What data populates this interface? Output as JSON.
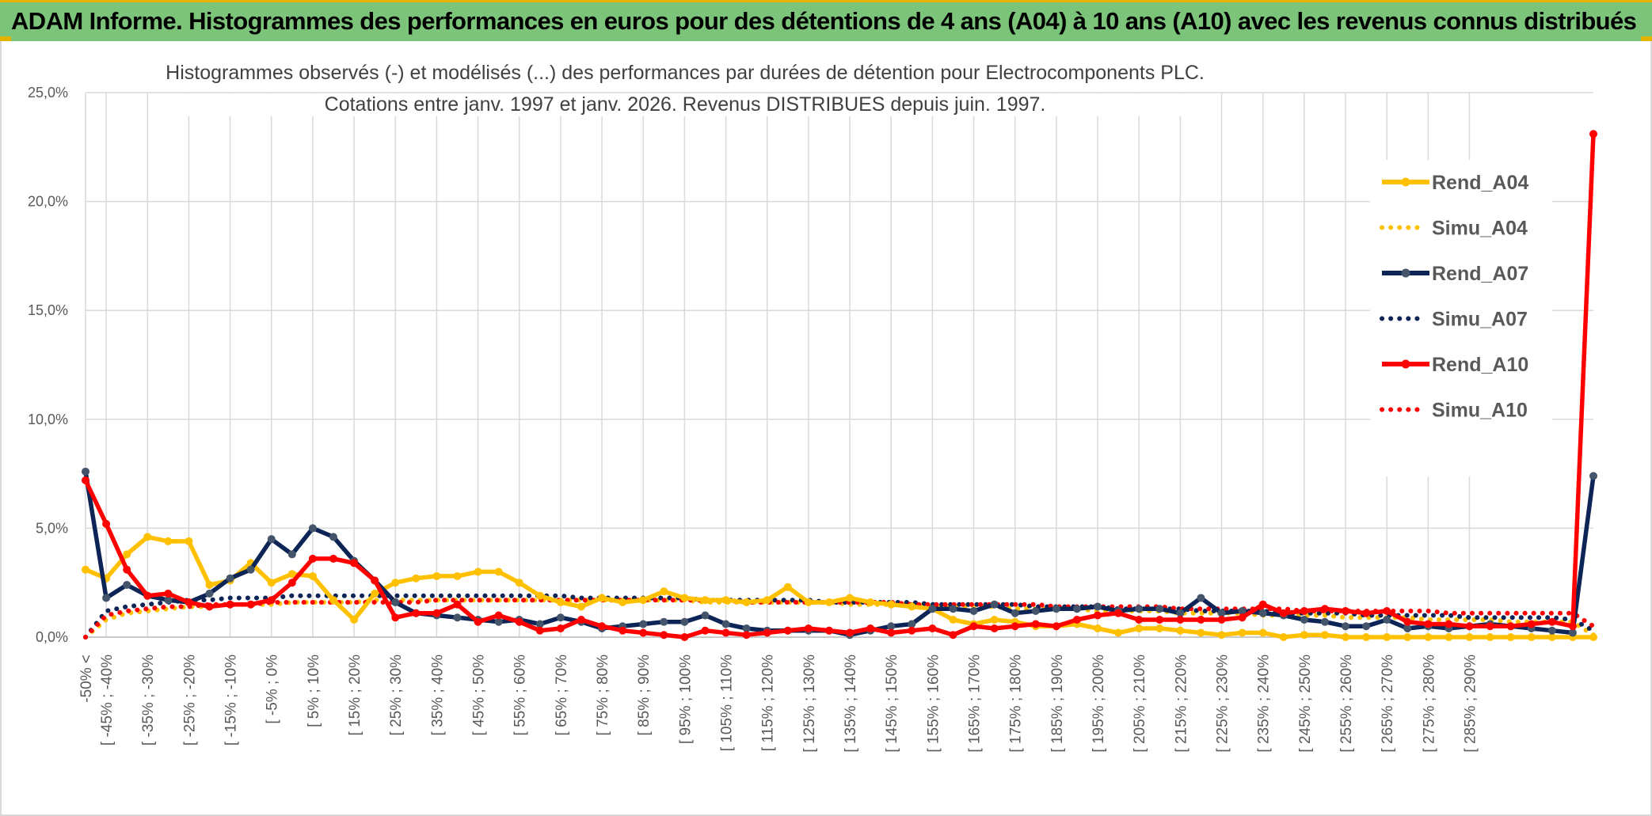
{
  "banner": {
    "title": "ADAM Informe. Histogrammes des performances en euros pour des détentions de 4 ans (A04) à 10 ans (A10) avec les revenus connus distribués"
  },
  "colors": {
    "banner_bg": "#7cc47a",
    "accent_gold": "#e3b300",
    "rend_a04": "#ffc000",
    "rend_a07": "#0d2457",
    "rend_a10": "#ff0000",
    "gridline": "#d9d9d9"
  },
  "chart_data": {
    "type": "line",
    "title_line1": "Histogrammes observés (-) et modélisés (...) des performances par durées de détention pour Electrocomponents PLC.",
    "title_line2": "Cotations entre janv. 1997 et janv. 2026. Revenus DISTRIBUES depuis juin. 1997.",
    "xlabel": "",
    "ylabel": "",
    "ylim": [
      0,
      25
    ],
    "y_ticks": [
      "0,0%",
      "5,0%",
      "10,0%",
      "15,0%",
      "20,0%",
      "25,0%"
    ],
    "grid": true,
    "legend_position": "right",
    "x_tick_labels": [
      "-50% <",
      "[ -45% ; -40%",
      "[ -35% ; -30%",
      "[ -25% ; -20%",
      "[ -15% ; -10%",
      "[ -5% ; 0%",
      "[ 5% ; 10%",
      "[ 15% ; 20%",
      "[ 25% ; 30%",
      "[ 35% ; 40%",
      "[ 45% ; 50%",
      "[ 55% ; 60%",
      "[ 65% ; 70%",
      "[ 75% ; 80%",
      "[ 85% ; 90%",
      "[ 95% ; 100%",
      "[ 105% ; 110%",
      "[ 115% ; 120%",
      "[ 125% ; 130%",
      "[ 135% ; 140%",
      "[ 145% ; 150%",
      "[ 155% ; 160%",
      "[ 165% ; 170%",
      "[ 175% ; 180%",
      "[ 185% ; 190%",
      "[ 195% ; 200%",
      "[ 205% ; 210%",
      "[ 215% ; 220%",
      "[ 225% ; 230%",
      "[ 235% ; 240%",
      "[ 245% ; 250%",
      "[ 255% ; 260%",
      "[ 265% ; 270%",
      "[ 275% ; 280%",
      "[ 285% ; 290%"
    ],
    "series": [
      {
        "name": "Rend_A04",
        "style": "solid",
        "color": "#ffc000",
        "values": [
          3.1,
          2.7,
          3.8,
          4.6,
          4.4,
          4.4,
          2.4,
          2.6,
          3.4,
          2.5,
          2.9,
          2.8,
          1.7,
          0.8,
          2.0,
          2.5,
          2.7,
          2.8,
          2.8,
          3.0,
          3.0,
          2.5,
          1.9,
          1.6,
          1.4,
          1.8,
          1.6,
          1.7,
          2.1,
          1.8,
          1.7,
          1.7,
          1.6,
          1.7,
          2.3,
          1.6,
          1.6,
          1.8,
          1.6,
          1.5,
          1.4,
          1.3,
          0.8,
          0.6,
          0.8,
          0.7,
          0.5,
          0.5,
          0.6,
          0.4,
          0.2,
          0.4,
          0.4,
          0.3,
          0.2,
          0.1,
          0.2,
          0.2,
          0.0,
          0.1,
          0.1,
          0.0,
          0.0,
          0.0,
          0.0,
          0.0,
          0.0,
          0.0,
          0.0,
          0.0,
          0.0,
          0.0,
          0.0,
          0.0
        ]
      },
      {
        "name": "Simu_A04",
        "style": "dotted",
        "color": "#ffc000",
        "values": [
          0.0,
          0.8,
          1.1,
          1.2,
          1.3,
          1.4,
          1.4,
          1.5,
          1.5,
          1.5,
          1.6,
          1.6,
          1.6,
          1.6,
          1.7,
          1.7,
          1.7,
          1.7,
          1.7,
          1.7,
          1.7,
          1.7,
          1.7,
          1.7,
          1.7,
          1.7,
          1.7,
          1.7,
          1.7,
          1.7,
          1.6,
          1.6,
          1.6,
          1.6,
          1.6,
          1.6,
          1.6,
          1.5,
          1.5,
          1.5,
          1.5,
          1.4,
          1.4,
          1.4,
          1.4,
          1.3,
          1.3,
          1.3,
          1.3,
          1.2,
          1.2,
          1.2,
          1.2,
          1.1,
          1.1,
          1.1,
          1.1,
          1.0,
          1.0,
          1.0,
          1.0,
          0.9,
          0.9,
          0.9,
          0.9,
          0.8,
          0.8,
          0.8,
          0.8,
          0.7,
          0.7,
          0.7,
          0.7,
          0.1
        ]
      },
      {
        "name": "Rend_A07",
        "style": "solid",
        "color": "#0d2457",
        "values": [
          7.6,
          1.8,
          2.4,
          1.9,
          1.7,
          1.6,
          2.0,
          2.7,
          3.1,
          4.5,
          3.8,
          5.0,
          4.6,
          3.5,
          2.6,
          1.6,
          1.1,
          1.0,
          0.9,
          0.8,
          0.7,
          0.8,
          0.6,
          0.9,
          0.7,
          0.4,
          0.5,
          0.6,
          0.7,
          0.7,
          1.0,
          0.6,
          0.4,
          0.3,
          0.3,
          0.3,
          0.3,
          0.1,
          0.3,
          0.5,
          0.6,
          1.3,
          1.3,
          1.2,
          1.5,
          1.1,
          1.2,
          1.3,
          1.3,
          1.4,
          1.2,
          1.3,
          1.3,
          1.1,
          1.8,
          1.1,
          1.2,
          1.1,
          1.0,
          0.8,
          0.7,
          0.5,
          0.5,
          0.8,
          0.4,
          0.5,
          0.4,
          0.5,
          0.6,
          0.5,
          0.4,
          0.3,
          0.2,
          7.4
        ]
      },
      {
        "name": "Simu_A07",
        "style": "dotted",
        "color": "#0d2457",
        "values": [
          0.0,
          1.2,
          1.4,
          1.5,
          1.6,
          1.7,
          1.7,
          1.8,
          1.8,
          1.8,
          1.9,
          1.9,
          1.9,
          1.9,
          1.9,
          1.9,
          1.9,
          1.9,
          1.9,
          1.9,
          1.9,
          1.9,
          1.9,
          1.9,
          1.8,
          1.8,
          1.8,
          1.8,
          1.8,
          1.8,
          1.7,
          1.7,
          1.7,
          1.7,
          1.7,
          1.7,
          1.6,
          1.6,
          1.6,
          1.6,
          1.6,
          1.5,
          1.5,
          1.5,
          1.5,
          1.5,
          1.4,
          1.4,
          1.4,
          1.4,
          1.3,
          1.3,
          1.3,
          1.3,
          1.2,
          1.2,
          1.2,
          1.2,
          1.1,
          1.1,
          1.1,
          1.1,
          1.0,
          1.0,
          1.0,
          1.0,
          1.0,
          0.9,
          0.9,
          0.9,
          0.9,
          0.9,
          0.8,
          0.3
        ]
      },
      {
        "name": "Rend_A10",
        "style": "solid",
        "color": "#ff0000",
        "values": [
          7.2,
          5.2,
          3.1,
          1.9,
          2.0,
          1.6,
          1.4,
          1.5,
          1.5,
          1.7,
          2.5,
          3.6,
          3.6,
          3.4,
          2.6,
          0.9,
          1.1,
          1.1,
          1.5,
          0.7,
          1.0,
          0.7,
          0.3,
          0.4,
          0.8,
          0.5,
          0.3,
          0.2,
          0.1,
          0.0,
          0.3,
          0.2,
          0.1,
          0.2,
          0.3,
          0.4,
          0.3,
          0.2,
          0.4,
          0.2,
          0.3,
          0.4,
          0.1,
          0.5,
          0.4,
          0.5,
          0.6,
          0.5,
          0.8,
          1.0,
          1.1,
          0.8,
          0.8,
          0.8,
          0.8,
          0.8,
          0.9,
          1.5,
          1.1,
          1.2,
          1.3,
          1.2,
          1.1,
          1.2,
          0.7,
          0.6,
          0.6,
          0.5,
          0.5,
          0.5,
          0.6,
          0.7,
          0.5,
          23.1
        ]
      },
      {
        "name": "Simu_A10",
        "style": "dotted",
        "color": "#ff0000",
        "values": [
          0.0,
          1.0,
          1.2,
          1.3,
          1.4,
          1.4,
          1.5,
          1.5,
          1.5,
          1.6,
          1.6,
          1.6,
          1.6,
          1.6,
          1.6,
          1.6,
          1.6,
          1.7,
          1.7,
          1.7,
          1.7,
          1.7,
          1.7,
          1.7,
          1.7,
          1.7,
          1.7,
          1.7,
          1.7,
          1.7,
          1.7,
          1.7,
          1.6,
          1.6,
          1.6,
          1.6,
          1.6,
          1.6,
          1.6,
          1.6,
          1.5,
          1.5,
          1.5,
          1.5,
          1.5,
          1.5,
          1.5,
          1.4,
          1.4,
          1.4,
          1.4,
          1.4,
          1.4,
          1.3,
          1.3,
          1.3,
          1.3,
          1.3,
          1.3,
          1.2,
          1.2,
          1.2,
          1.2,
          1.2,
          1.2,
          1.2,
          1.1,
          1.1,
          1.1,
          1.1,
          1.1,
          1.1,
          1.1,
          0.5
        ]
      }
    ]
  }
}
